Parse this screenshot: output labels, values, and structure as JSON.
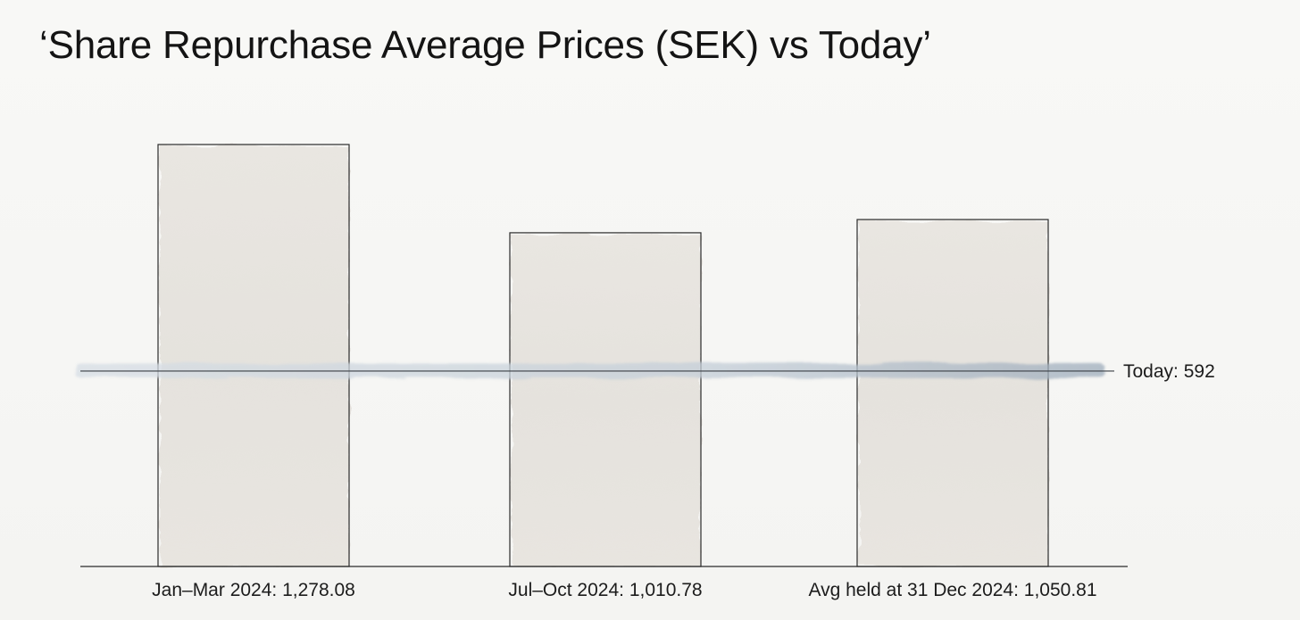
{
  "chart_data": {
    "type": "bar",
    "title": "‘Share Repurchase Average Prices (SEK) vs Today’",
    "xlabel": "",
    "ylabel": "",
    "categories": [
      "Jan–Mar 2024",
      "Jul–Oct 2024",
      "Avg held at 31 Dec 2024"
    ],
    "values": [
      1278.08,
      1010.78,
      1050.81
    ],
    "category_labels": [
      "Jan–Mar 2024: 1,278.08",
      "Jul–Oct 2024: 1,010.78",
      "Avg held at 31 Dec 2024: 1,050.81"
    ],
    "reference_line": {
      "value": 592,
      "label": "Today: 592",
      "color": "#8d9eb0"
    },
    "ylim": [
      0,
      1278.08
    ],
    "grid": false,
    "bar_color": "#e8e5df",
    "bar_edge_color": "#2a2a2a"
  }
}
